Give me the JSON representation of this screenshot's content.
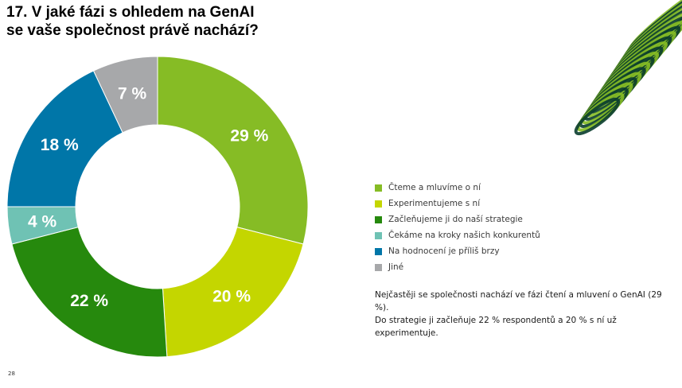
{
  "title": {
    "line1": "17. V jaké fázi s ohledem na GenAI",
    "line2": "se vaše společnost právě nachází?"
  },
  "chart_data": {
    "type": "pie",
    "donut": true,
    "categories": [
      "Čteme a mluvíme o ní",
      "Experimentujeme s ní",
      "Začleňujeme ji do naší strategie",
      "Čekáme na kroky našich konkurentů",
      "Na hodnocení je příliš brzy",
      "Jiné"
    ],
    "values": [
      29,
      20,
      22,
      4,
      18,
      7
    ],
    "data_labels": [
      "29 %",
      "20 %",
      "22 %",
      "4 %",
      "18 %",
      "7 %"
    ],
    "colors": [
      "#86bc25",
      "#c4d600",
      "#26890d",
      "#6fc2b4",
      "#0076a8",
      "#a7a8aa"
    ],
    "legend_position": "right"
  },
  "note": {
    "line1": "Nejčastěji se společnosti nachází ve fázi čtení a mluvení o GenAI (29 %).",
    "line2": "Do strategie ji začleňuje 22 % respondentů a 20 % s ní už experimentuje."
  },
  "page_number": "28",
  "decoration": {
    "description_icon": "green-spiral-graphic",
    "colors": [
      "#86bc25",
      "#0a3d2e"
    ]
  }
}
